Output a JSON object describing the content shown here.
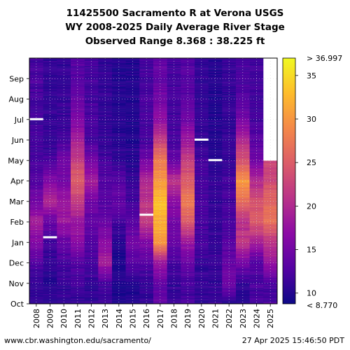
{
  "title": {
    "line1": "11425500 Sacramento R at Verona USGS",
    "line2": "WY 2008-2025 Daily Average River Stage",
    "line3": "Observed Range 8.368 : 38.225 ft"
  },
  "footer": {
    "left": "www.cbr.washington.edu/sacramento/",
    "right": "27 Apr 2025 15:46:50 PDT"
  },
  "chart_data": {
    "type": "heatmap",
    "title": "11425500 Sacramento R at Verona USGS WY 2008-2025 Daily Average River Stage",
    "subtitle": "Observed Range 8.368 : 38.225 ft",
    "x_categories": [
      "2008",
      "2009",
      "2010",
      "2011",
      "2012",
      "2013",
      "2014",
      "2015",
      "2016",
      "2017",
      "2018",
      "2019",
      "2020",
      "2021",
      "2022",
      "2023",
      "2024",
      "2025"
    ],
    "y_categories": [
      "Oct",
      "Nov",
      "Dec",
      "Jan",
      "Feb",
      "Mar",
      "Apr",
      "May",
      "Jun",
      "Jul",
      "Aug",
      "Sep"
    ],
    "monthly_stage_ft": {
      "2008": [
        11,
        11,
        13,
        16,
        19,
        15,
        13,
        12,
        12,
        12,
        12,
        12
      ],
      "2009": [
        11,
        10,
        11,
        12,
        14,
        20,
        16,
        12,
        11,
        11,
        11,
        11
      ],
      "2010": [
        11,
        11,
        12,
        14,
        18,
        18,
        15,
        15,
        12,
        11,
        11,
        11
      ],
      "2011": [
        11,
        12,
        13,
        17,
        18,
        22,
        25,
        22,
        19,
        16,
        14,
        13
      ],
      "2012": [
        11,
        11,
        12,
        13,
        14,
        15,
        19,
        15,
        12,
        12,
        12,
        12
      ],
      "2013": [
        11,
        12,
        19,
        17,
        14,
        13,
        13,
        12,
        11,
        11,
        11,
        11
      ],
      "2014": [
        10,
        10,
        10,
        10,
        12,
        14,
        13,
        11,
        10,
        10,
        10,
        10
      ],
      "2015": [
        10,
        10,
        13,
        15,
        13,
        12,
        11,
        10,
        10,
        10,
        10,
        10
      ],
      "2016": [
        11,
        11,
        13,
        16,
        22,
        21,
        20,
        15,
        12,
        12,
        12,
        12
      ],
      "2017": [
        14,
        14,
        18,
        30,
        32,
        33,
        30,
        28,
        22,
        17,
        15,
        14
      ],
      "2018": [
        11,
        11,
        12,
        14,
        15,
        17,
        21,
        14,
        12,
        12,
        12,
        12
      ],
      "2019": [
        12,
        12,
        14,
        18,
        25,
        28,
        25,
        22,
        18,
        15,
        13,
        13
      ],
      "2020": [
        11,
        11,
        11,
        12,
        12,
        12,
        12,
        12,
        11,
        11,
        11,
        11
      ],
      "2021": [
        11,
        11,
        11,
        11,
        11,
        11,
        11,
        10,
        10,
        10,
        10,
        10
      ],
      "2022": [
        10,
        15,
        14,
        13,
        12,
        12,
        12,
        11,
        11,
        11,
        11,
        11
      ],
      "2023": [
        10,
        11,
        15,
        22,
        20,
        27,
        30,
        24,
        20,
        15,
        13,
        12
      ],
      "2024": [
        12,
        12,
        13,
        19,
        25,
        24,
        20,
        15,
        13,
        12,
        12,
        12
      ],
      "2025": [
        12,
        12,
        18,
        21,
        27,
        26,
        23,
        null,
        null,
        null,
        null,
        null
      ]
    },
    "marked_days": [
      {
        "year": "2008",
        "date": "Jul 1"
      },
      {
        "year": "2009",
        "date": "Jan 8"
      },
      {
        "year": "2016",
        "date": "Feb 11"
      },
      {
        "year": "2020",
        "date": "Jun 1"
      },
      {
        "year": "2021",
        "date": "May 1"
      }
    ],
    "colorbar": {
      "min": 8.77,
      "max": 36.997,
      "ticks": [
        10,
        15,
        20,
        25,
        30,
        35
      ],
      "under_label": "< 8.770",
      "over_label": "> 36.997",
      "colormap": "plasma"
    },
    "grid": true
  }
}
